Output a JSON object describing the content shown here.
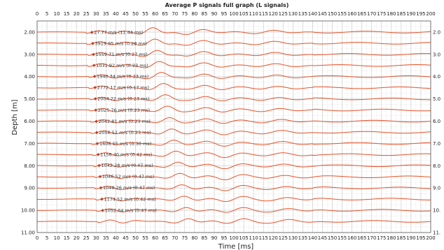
{
  "chart_data": {
    "type": "line",
    "title": "Average P signals full graph (L signals)",
    "xlabel": "Time [ms]",
    "ylabel": "Depth [m]",
    "xlim": [
      0,
      200
    ],
    "ylim": [
      1.5,
      11.0
    ],
    "x_ticks": [
      0,
      5,
      10,
      15,
      20,
      25,
      30,
      35,
      40,
      45,
      50,
      55,
      60,
      65,
      70,
      75,
      80,
      85,
      90,
      95,
      100,
      105,
      110,
      115,
      120,
      125,
      130,
      135,
      140,
      145,
      150,
      155,
      160,
      165,
      170,
      175,
      180,
      185,
      190,
      195,
      200
    ],
    "x_tick_labels": [
      "0",
      "5",
      "10",
      "15",
      "20",
      "25",
      "30",
      "35",
      "40",
      "45",
      "50",
      "55",
      "60",
      "65",
      "70",
      "75",
      "80",
      "85",
      "90",
      "95",
      "100",
      "105",
      "110",
      "115",
      "120",
      "125",
      "130",
      "135",
      "140",
      "145",
      "150",
      "155",
      "160",
      "165",
      "170",
      "175",
      "180",
      "185",
      "190",
      "195",
      "200"
    ],
    "y_ticks": [
      2,
      3,
      4,
      5,
      6,
      7,
      8,
      9,
      10,
      11
    ],
    "y_tick_labels": [
      "2.00",
      "3.00",
      "4.00",
      "5.00",
      "6.00",
      "7.00",
      "8.00",
      "9.00",
      "10.00",
      "11.00"
    ],
    "y_tick_labels_right": [
      "2.0",
      "3.0",
      "4.0",
      "5.0",
      "6.0",
      "7.0",
      "8.0",
      "9.0",
      "10.",
      "11."
    ],
    "grid": true,
    "line_color": "#e8532a",
    "marker_color": "#cc3a1a",
    "traces": [
      {
        "depth": 2.0,
        "pick_ms": 27.8,
        "label": "27.77 m/s (11.44 ms)"
      },
      {
        "depth": 2.5,
        "pick_ms": 28.3,
        "label": "3919.95 m/s (0.28 ms)"
      },
      {
        "depth": 3.0,
        "pick_ms": 28.6,
        "label": "1559.71 m/s (0.27 ms)"
      },
      {
        "depth": 3.5,
        "pick_ms": 28.9,
        "label": "1031.92 m/s (0.23 ms)"
      },
      {
        "depth": 4.0,
        "pick_ms": 29.2,
        "label": "1940.34 m/s (0.23 ms)"
      },
      {
        "depth": 4.5,
        "pick_ms": 29.4,
        "label": "2772.17 m/s (0.17 ms)"
      },
      {
        "depth": 5.0,
        "pick_ms": 29.6,
        "label": "2004.22 m/s (0.23 ms)"
      },
      {
        "depth": 5.5,
        "pick_ms": 29.8,
        "label": "2025.76 m/s (0.23 ms)"
      },
      {
        "depth": 6.0,
        "pick_ms": 30.1,
        "label": "2042.81 m/s (0.23 ms)"
      },
      {
        "depth": 6.5,
        "pick_ms": 30.3,
        "label": "2056.52 m/s (0.23 ms)"
      },
      {
        "depth": 7.0,
        "pick_ms": 30.6,
        "label": "1606.55 m/s (0.30 ms)"
      },
      {
        "depth": 7.5,
        "pick_ms": 31.0,
        "label": "1156.40 m/s (0.42 ms)"
      },
      {
        "depth": 8.0,
        "pick_ms": 31.5,
        "label": "1042.28 m/s (0.47 ms)"
      },
      {
        "depth": 8.5,
        "pick_ms": 32.0,
        "label": "1046.52 m/s (0.47 ms)"
      },
      {
        "depth": 9.0,
        "pick_ms": 32.4,
        "label": "1048.26 m/s (0.47 ms)"
      },
      {
        "depth": 9.5,
        "pick_ms": 32.9,
        "label": "1174.52 m/s (0.42 ms)"
      },
      {
        "depth": 10.0,
        "pick_ms": 33.3,
        "label": "1052.64 m/s (0.47 ms)"
      },
      {
        "depth": 10.5,
        "pick_ms": null,
        "label": ""
      }
    ]
  }
}
